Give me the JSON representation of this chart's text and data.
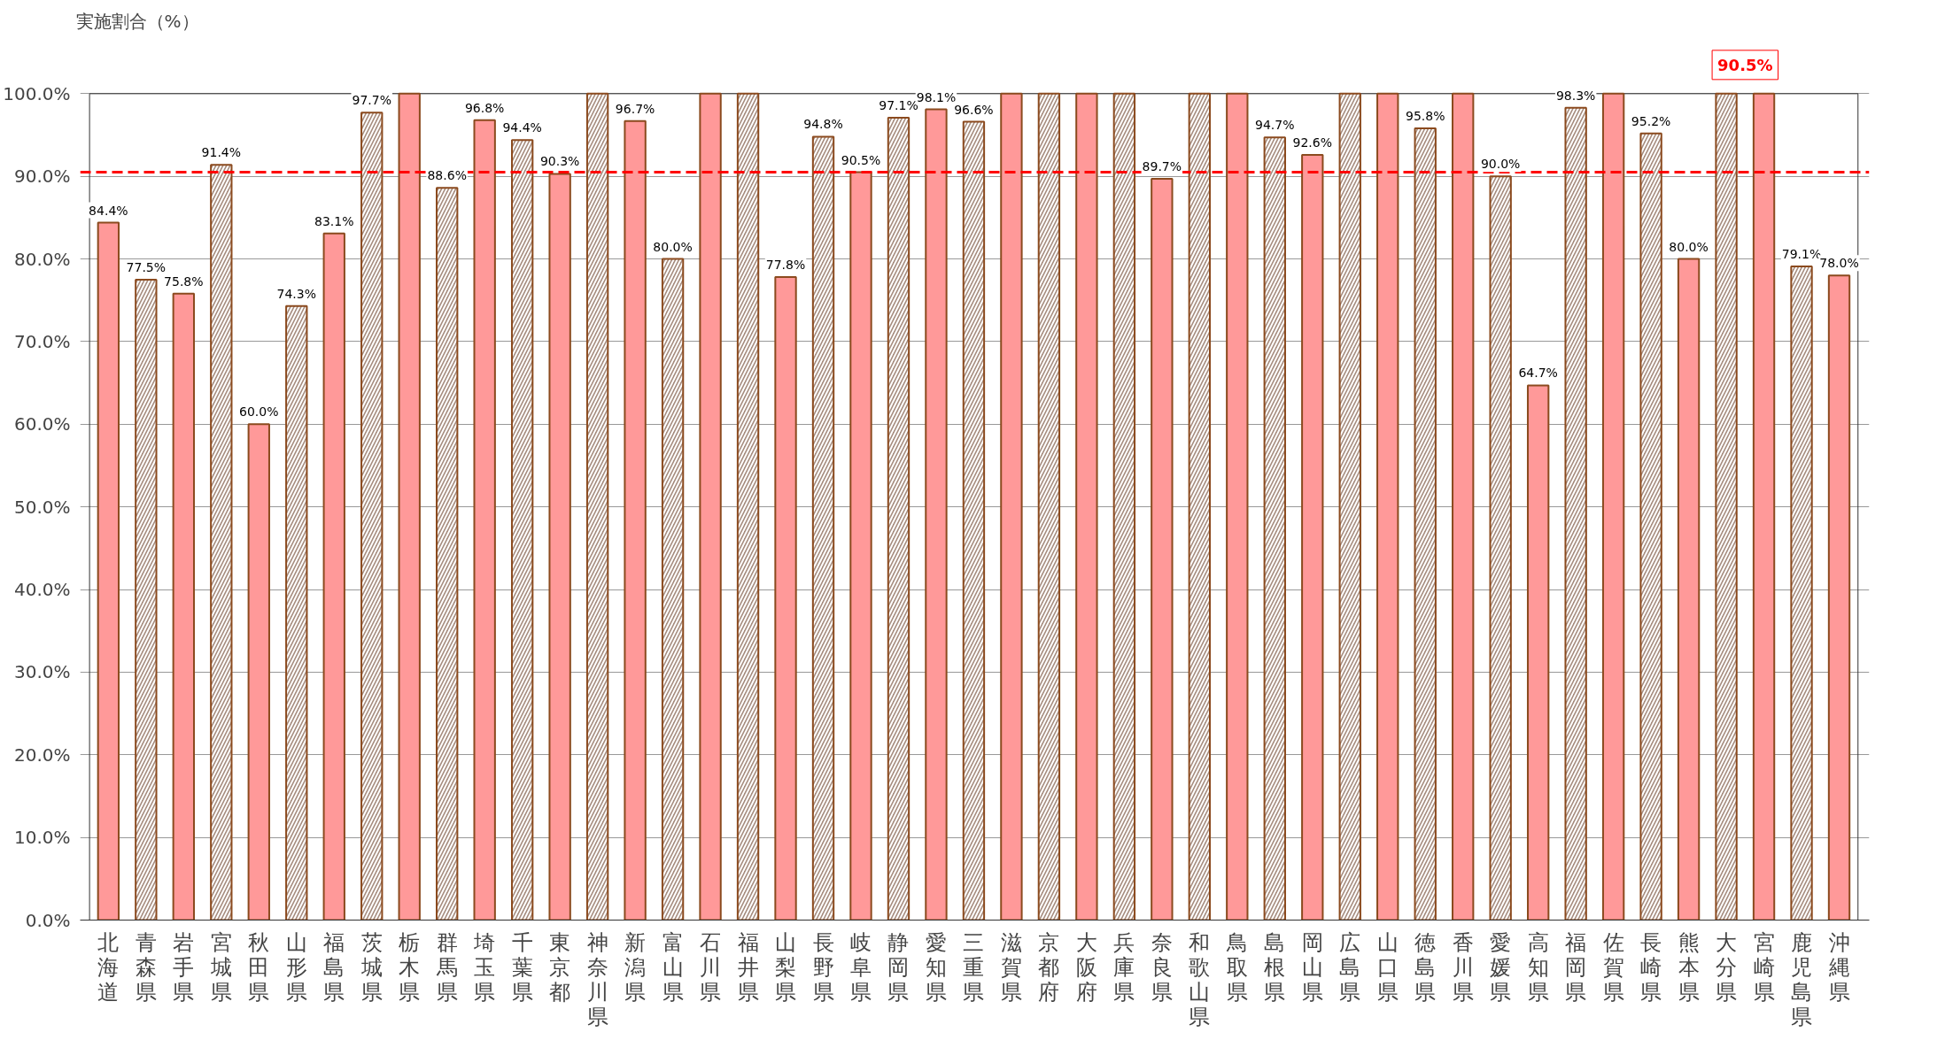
{
  "chart_data": {
    "type": "bar",
    "ylabel": "実施割合（%）",
    "categories": [
      "北海道",
      "青森県",
      "岩手県",
      "宮城県",
      "秋田県",
      "山形県",
      "福島県",
      "茨城県",
      "栃木県",
      "群馬県",
      "埼玉県",
      "千葉県",
      "東京都",
      "神奈川県",
      "新潟県",
      "富山県",
      "石川県",
      "福井県",
      "山梨県",
      "長野県",
      "岐阜県",
      "静岡県",
      "愛知県",
      "三重県",
      "滋賀県",
      "京都府",
      "大阪府",
      "兵庫県",
      "奈良県",
      "和歌山県",
      "鳥取県",
      "島根県",
      "岡山県",
      "広島県",
      "山口県",
      "徳島県",
      "香川県",
      "愛媛県",
      "高知県",
      "福岡県",
      "佐賀県",
      "長崎県",
      "熊本県",
      "大分県",
      "宮崎県",
      "鹿児島県",
      "沖縄県"
    ],
    "values": [
      84.4,
      77.5,
      75.8,
      91.4,
      60.0,
      74.3,
      83.1,
      97.7,
      100,
      88.6,
      96.8,
      94.4,
      90.3,
      100,
      96.7,
      80.0,
      100,
      100,
      77.8,
      94.8,
      90.5,
      97.1,
      98.1,
      96.6,
      100,
      100,
      100,
      100,
      89.7,
      100,
      100,
      94.7,
      92.6,
      100,
      100,
      95.8,
      100,
      90.0,
      64.7,
      98.3,
      100,
      95.2,
      80.0,
      100,
      100,
      79.1,
      78.0
    ],
    "value_labels": [
      "84.4%",
      "77.5%",
      "75.8%",
      "91.4%",
      "60.0%",
      "74.3%",
      "83.1%",
      "97.7%",
      null,
      "88.6%",
      "96.8%",
      "94.4%",
      "90.3%",
      null,
      "96.7%",
      "80.0%",
      null,
      null,
      "77.8%",
      "94.8%",
      "90.5%",
      "97.1%",
      "98.1%",
      "96.6%",
      null,
      null,
      null,
      null,
      "89.7%",
      null,
      null,
      "94.7%",
      "92.6%",
      null,
      null,
      "95.8%",
      null,
      "90.0%",
      "64.7%",
      "98.3%",
      null,
      "95.2%",
      "80.0%",
      null,
      null,
      "79.1%",
      "78.0%"
    ],
    "colors": [
      "#ff9999",
      "#a58b7d",
      "#ff9999",
      "#a58b7d",
      "#ff9999",
      "#a58b7d",
      "#ff9999",
      "#a58b7d",
      "#ff9999",
      "#a58b7d",
      "#ff9999",
      "#a58b7d",
      "#ff9999",
      "#a58b7d",
      "#ff9999",
      "#a58b7d",
      "#ff9999",
      "#a58b7d",
      "#ff9999",
      "#a58b7d",
      "#ff9999",
      "#a58b7d",
      "#ff9999",
      "#a58b7d",
      "#ff9999",
      "#a58b7d",
      "#ff9999",
      "#a58b7d",
      "#ff9999",
      "#a58b7d",
      "#ff9999",
      "#a58b7d",
      "#ff9999",
      "#a58b7d",
      "#ff9999",
      "#a58b7d",
      "#ff9999",
      "#a58b7d",
      "#ff9999",
      "#a58b7d",
      "#ff9999",
      "#a58b7d",
      "#ff9999",
      "#a58b7d",
      "#ff9999",
      "#a58b7d",
      "#ff9999"
    ],
    "ylim": [
      0,
      100
    ],
    "yticks": [
      {
        "value": 0,
        "label": "0.0%"
      },
      {
        "value": 10,
        "label": "10.0%"
      },
      {
        "value": 20,
        "label": "20.0%"
      },
      {
        "value": 30,
        "label": "30.0%"
      },
      {
        "value": 40,
        "label": "40.0%"
      },
      {
        "value": 50,
        "label": "50.0%"
      },
      {
        "value": 60,
        "label": "60.0%"
      },
      {
        "value": 70,
        "label": "70.0%"
      },
      {
        "value": 80,
        "label": "80.0%"
      },
      {
        "value": 90,
        "label": "90.0%"
      },
      {
        "value": 100,
        "label": "100.0%"
      }
    ],
    "grid": "y",
    "ref_lines": [
      {
        "axis": "y",
        "value": 90.5,
        "label": "90.5%",
        "color": "#ff0000",
        "line_style": "dashed"
      }
    ]
  }
}
